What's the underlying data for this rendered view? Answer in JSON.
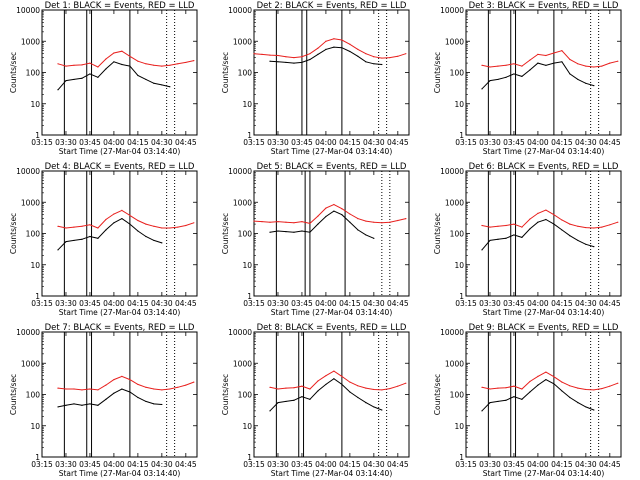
{
  "colors": {
    "events": "#000000",
    "lld": "#e8201e",
    "background": "#ffffff"
  },
  "panel_titles": [
    "Det 1: BLACK = Events, RED = LLD",
    "Det 2: BLACK = Events, RED = LLD",
    "Det 3: BLACK = Events, RED = LLD",
    "Det 4: BLACK = Events, RED = LLD",
    "Det 5: BLACK = Events, RED = LLD",
    "Det 6: BLACK = Events, RED = LLD",
    "Det 7: BLACK = Events, RED = LLD",
    "Det 8: BLACK = Events, RED = LLD",
    "Det 9: BLACK = Events, RED = LLD"
  ],
  "xlabel": "Start Time (27-Mar-04 03:14:40)",
  "ylabel": "Counts/sec",
  "x_tick_labels": [
    "03:15",
    "03:30",
    "03:45",
    "04:00",
    "04:15",
    "04:30",
    "04:45"
  ],
  "y_tick_labels": [
    "1",
    "10",
    "100",
    "1000",
    "10000"
  ],
  "chart_data": [
    {
      "type": "line",
      "y_scale": "log",
      "xlim": [
        "03:15",
        "04:52"
      ],
      "ylim": [
        1,
        10000
      ],
      "x": [
        "03:20",
        "03:25",
        "03:30",
        "03:35",
        "03:40",
        "03:45",
        "03:50",
        "03:55",
        "04:00",
        "04:05",
        "04:10",
        "04:15",
        "04:20",
        "04:25",
        "04:30",
        "04:35",
        "04:40",
        "04:45",
        "04:50"
      ],
      "series": [
        {
          "name": "Events",
          "values": [
            null,
            28,
            55,
            60,
            65,
            90,
            70,
            130,
            220,
            180,
            160,
            80,
            60,
            45,
            40,
            35,
            null,
            null,
            null
          ]
        },
        {
          "name": "LLD",
          "values": [
            null,
            190,
            160,
            170,
            175,
            200,
            150,
            270,
            420,
            480,
            330,
            230,
            190,
            170,
            160,
            170,
            190,
            210,
            240
          ]
        }
      ],
      "vlines_solid": [
        "03:29",
        "03:43",
        "03:46",
        "04:10"
      ],
      "vlines_dotted": [
        "04:33",
        "04:38"
      ]
    },
    {
      "type": "line",
      "y_scale": "log",
      "xlim": [
        "03:15",
        "04:52"
      ],
      "ylim": [
        1,
        10000
      ],
      "x": [
        "03:15",
        "03:20",
        "03:25",
        "03:30",
        "03:35",
        "03:40",
        "03:45",
        "03:50",
        "03:55",
        "04:00",
        "04:05",
        "04:10",
        "04:15",
        "04:20",
        "04:25",
        "04:30",
        "04:35",
        "04:40",
        "04:45",
        "04:50"
      ],
      "series": [
        {
          "name": "Events",
          "values": [
            null,
            null,
            230,
            220,
            210,
            200,
            210,
            260,
            380,
            550,
            650,
            620,
            470,
            330,
            220,
            190,
            180,
            null,
            null,
            null
          ]
        },
        {
          "name": "LLD",
          "values": [
            400,
            380,
            360,
            350,
            320,
            300,
            320,
            400,
            600,
            1000,
            1200,
            1100,
            800,
            550,
            400,
            320,
            290,
            300,
            330,
            400
          ]
        }
      ],
      "vlines_solid": [
        "03:29",
        "03:45",
        "03:48",
        "04:10"
      ],
      "vlines_dotted": [
        "04:33",
        "04:38"
      ]
    },
    {
      "type": "line",
      "y_scale": "log",
      "xlim": [
        "03:15",
        "04:52"
      ],
      "ylim": [
        1,
        10000
      ],
      "x": [
        "03:20",
        "03:25",
        "03:30",
        "03:35",
        "03:40",
        "03:45",
        "03:50",
        "03:55",
        "04:00",
        "04:05",
        "04:10",
        "04:15",
        "04:20",
        "04:25",
        "04:30",
        "04:35",
        "04:40",
        "04:45",
        "04:50"
      ],
      "series": [
        {
          "name": "Events",
          "values": [
            null,
            30,
            55,
            60,
            70,
            90,
            75,
            120,
            200,
            170,
            200,
            220,
            90,
            60,
            45,
            38,
            null,
            null,
            null
          ]
        },
        {
          "name": "LLD",
          "values": [
            null,
            170,
            150,
            160,
            170,
            190,
            160,
            250,
            380,
            350,
            420,
            500,
            260,
            190,
            160,
            150,
            160,
            200,
            230
          ]
        }
      ],
      "vlines_solid": [
        "03:29",
        "03:43",
        "03:46",
        "04:10"
      ],
      "vlines_dotted": [
        "04:33",
        "04:38"
      ]
    },
    {
      "type": "line",
      "y_scale": "log",
      "xlim": [
        "03:15",
        "04:52"
      ],
      "ylim": [
        1,
        10000
      ],
      "x": [
        "03:20",
        "03:25",
        "03:30",
        "03:35",
        "03:40",
        "03:45",
        "03:50",
        "03:55",
        "04:00",
        "04:05",
        "04:10",
        "04:15",
        "04:20",
        "04:25",
        "04:30",
        "04:35",
        "04:40",
        "04:45",
        "04:50"
      ],
      "series": [
        {
          "name": "Events",
          "values": [
            null,
            30,
            55,
            60,
            65,
            80,
            70,
            130,
            220,
            300,
            200,
            120,
            80,
            60,
            50,
            null,
            null,
            null,
            null
          ]
        },
        {
          "name": "LLD",
          "values": [
            null,
            170,
            150,
            160,
            170,
            190,
            150,
            280,
            420,
            550,
            380,
            260,
            200,
            170,
            150,
            150,
            160,
            180,
            220
          ]
        }
      ],
      "vlines_solid": [
        "03:29",
        "03:43",
        "03:46",
        "04:10"
      ],
      "vlines_dotted": [
        "04:33",
        "04:38"
      ]
    },
    {
      "type": "line",
      "y_scale": "log",
      "xlim": [
        "03:15",
        "04:52"
      ],
      "ylim": [
        1,
        10000
      ],
      "x": [
        "03:15",
        "03:20",
        "03:25",
        "03:30",
        "03:35",
        "03:40",
        "03:45",
        "03:50",
        "03:55",
        "04:00",
        "04:05",
        "04:10",
        "04:15",
        "04:20",
        "04:25",
        "04:30",
        "04:35",
        "04:40",
        "04:45",
        "04:50"
      ],
      "series": [
        {
          "name": "Events",
          "values": [
            null,
            null,
            110,
            120,
            115,
            110,
            120,
            110,
            200,
            350,
            520,
            400,
            230,
            130,
            90,
            70,
            null,
            null,
            null,
            null
          ]
        },
        {
          "name": "LLD",
          "values": [
            250,
            240,
            230,
            240,
            230,
            220,
            240,
            210,
            360,
            650,
            850,
            620,
            420,
            300,
            250,
            230,
            220,
            230,
            260,
            300
          ]
        }
      ],
      "vlines_solid": [
        "03:29",
        "03:47",
        "03:50",
        "04:12"
      ],
      "vlines_dotted": [
        "04:35",
        "04:40"
      ]
    },
    {
      "type": "line",
      "y_scale": "log",
      "xlim": [
        "03:15",
        "04:52"
      ],
      "ylim": [
        1,
        10000
      ],
      "x": [
        "03:20",
        "03:25",
        "03:30",
        "03:35",
        "03:40",
        "03:45",
        "03:50",
        "03:55",
        "04:00",
        "04:05",
        "04:10",
        "04:15",
        "04:20",
        "04:25",
        "04:30",
        "04:35",
        "04:40",
        "04:45",
        "04:50"
      ],
      "series": [
        {
          "name": "Events",
          "values": [
            null,
            30,
            60,
            65,
            70,
            90,
            75,
            140,
            230,
            280,
            200,
            130,
            85,
            60,
            45,
            38,
            null,
            null,
            null
          ]
        },
        {
          "name": "LLD",
          "values": [
            null,
            180,
            160,
            170,
            180,
            200,
            160,
            290,
            440,
            560,
            400,
            270,
            200,
            170,
            155,
            150,
            160,
            190,
            230
          ]
        }
      ],
      "vlines_solid": [
        "03:29",
        "03:43",
        "03:46",
        "04:10"
      ],
      "vlines_dotted": [
        "04:33",
        "04:38"
      ]
    },
    {
      "type": "line",
      "y_scale": "log",
      "xlim": [
        "03:15",
        "04:52"
      ],
      "ylim": [
        1,
        10000
      ],
      "x": [
        "03:20",
        "03:25",
        "03:30",
        "03:35",
        "03:40",
        "03:45",
        "03:50",
        "03:55",
        "04:00",
        "04:05",
        "04:10",
        "04:15",
        "04:20",
        "04:25",
        "04:30",
        "04:35",
        "04:40",
        "04:45",
        "04:50"
      ],
      "series": [
        {
          "name": "Events",
          "values": [
            null,
            40,
            45,
            50,
            45,
            50,
            45,
            70,
            110,
            150,
            120,
            80,
            60,
            50,
            48,
            null,
            null,
            null,
            null
          ]
        },
        {
          "name": "LLD",
          "values": [
            null,
            160,
            150,
            150,
            140,
            150,
            140,
            200,
            300,
            380,
            300,
            210,
            170,
            150,
            140,
            150,
            170,
            200,
            250
          ]
        }
      ],
      "vlines_solid": [
        "03:29",
        "03:43",
        "03:46",
        "04:10"
      ],
      "vlines_dotted": [
        "04:33",
        "04:38"
      ]
    },
    {
      "type": "line",
      "y_scale": "log",
      "xlim": [
        "03:15",
        "04:52"
      ],
      "ylim": [
        1,
        10000
      ],
      "x": [
        "03:20",
        "03:25",
        "03:30",
        "03:35",
        "03:40",
        "03:45",
        "03:50",
        "03:55",
        "04:00",
        "04:05",
        "04:10",
        "04:15",
        "04:20",
        "04:25",
        "04:30",
        "04:35",
        "04:40",
        "04:45",
        "04:50"
      ],
      "series": [
        {
          "name": "Events",
          "values": [
            null,
            30,
            55,
            60,
            65,
            85,
            70,
            130,
            210,
            320,
            210,
            120,
            80,
            55,
            40,
            32,
            null,
            null,
            null
          ]
        },
        {
          "name": "LLD",
          "values": [
            null,
            170,
            150,
            160,
            165,
            185,
            150,
            270,
            400,
            560,
            380,
            250,
            190,
            160,
            145,
            140,
            155,
            185,
            230
          ]
        }
      ],
      "vlines_solid": [
        "03:29",
        "03:43",
        "03:46",
        "04:10"
      ],
      "vlines_dotted": [
        "04:33",
        "04:38"
      ]
    },
    {
      "type": "line",
      "y_scale": "log",
      "xlim": [
        "03:15",
        "04:52"
      ],
      "ylim": [
        1,
        10000
      ],
      "x": [
        "03:20",
        "03:25",
        "03:30",
        "03:35",
        "03:40",
        "03:45",
        "03:50",
        "03:55",
        "04:00",
        "04:05",
        "04:10",
        "04:15",
        "04:20",
        "04:25",
        "04:30",
        "04:35",
        "04:40",
        "04:45",
        "04:50"
      ],
      "series": [
        {
          "name": "Events",
          "values": [
            null,
            30,
            55,
            60,
            65,
            85,
            70,
            120,
            200,
            300,
            220,
            130,
            80,
            55,
            40,
            32,
            null,
            null,
            null
          ]
        },
        {
          "name": "LLD",
          "values": [
            null,
            170,
            150,
            160,
            165,
            185,
            150,
            260,
            380,
            520,
            370,
            250,
            190,
            160,
            145,
            140,
            155,
            185,
            230
          ]
        }
      ],
      "vlines_solid": [
        "03:29",
        "03:43",
        "03:46",
        "04:10"
      ],
      "vlines_dotted": [
        "04:33",
        "04:38"
      ]
    }
  ]
}
